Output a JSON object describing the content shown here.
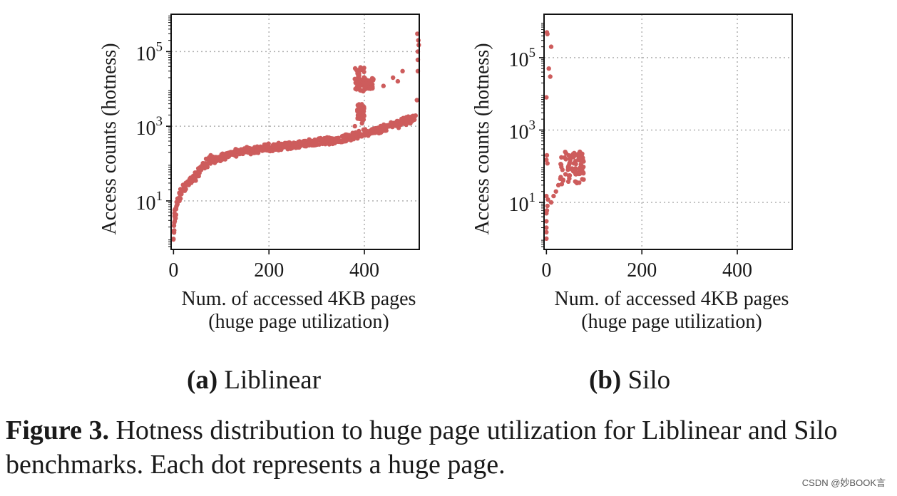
{
  "chart_data": [
    {
      "type": "scatter",
      "panel_label": "(a)",
      "panel_title": "Liblinear",
      "xlabel": "Num. of accessed 4KB pages",
      "xlabel2": "(huge page utilization)",
      "ylabel": "Access counts (hotness)",
      "xlim": [
        -5,
        515
      ],
      "ylim_log10": [
        -0.3,
        6.0
      ],
      "xticks": [
        0,
        200,
        400
      ],
      "xtick_labels": [
        "0",
        "200",
        "400"
      ],
      "yticks_log10": [
        1,
        3,
        5
      ],
      "ytick_labels": [
        {
          "base": "10",
          "exp": "1"
        },
        {
          "base": "10",
          "exp": "3"
        },
        {
          "base": "10",
          "exp": "5"
        }
      ],
      "y_scale": "log",
      "grid": true,
      "marker_color": "#cd5c5c",
      "series": [
        {
          "curves": [
            [
              [
                0,
                0.9
              ],
              [
                1,
                3
              ],
              [
                3,
                5
              ],
              [
                6,
                8
              ],
              [
                10,
                12
              ],
              [
                15,
                18
              ],
              [
                20,
                22
              ],
              [
                30,
                30
              ],
              [
                40,
                45
              ],
              [
                50,
                60
              ],
              [
                60,
                90
              ],
              [
                70,
                120
              ],
              [
                80,
                140
              ],
              [
                100,
                160
              ],
              [
                130,
                200
              ],
              [
                160,
                240
              ],
              [
                200,
                280
              ],
              [
                250,
                330
              ],
              [
                300,
                380
              ],
              [
                330,
                420
              ],
              [
                360,
                480
              ],
              [
                390,
                580
              ],
              [
                420,
                700
              ],
              [
                450,
                900
              ],
              [
                480,
                1200
              ],
              [
                500,
                1500
              ],
              [
                510,
                2000
              ]
            ],
            [
              [
                0,
                1
              ],
              [
                2,
                2.5
              ],
              [
                5,
                5
              ],
              [
                10,
                10
              ],
              [
                20,
                18
              ],
              [
                30,
                28
              ],
              [
                45,
                40
              ],
              [
                60,
                70
              ],
              [
                75,
                100
              ],
              [
                90,
                130
              ],
              [
                120,
                170
              ],
              [
                150,
                210
              ],
              [
                200,
                260
              ],
              [
                250,
                310
              ],
              [
                300,
                360
              ],
              [
                340,
                420
              ],
              [
                370,
                520
              ],
              [
                400,
                680
              ],
              [
                430,
                850
              ],
              [
                460,
                1100
              ],
              [
                490,
                1500
              ],
              [
                505,
                1800
              ]
            ]
          ],
          "clusters": [
            {
              "x": [
                380,
                400
              ],
              "y": [
                8000,
                40000
              ]
            },
            {
              "x": [
                385,
                400
              ],
              "y": [
                1500,
                4000
              ]
            },
            {
              "x": [
                400,
                420
              ],
              "y": [
                10000,
                20000
              ]
            }
          ],
          "points": [
            [
              460,
              20000
            ],
            [
              470,
              16000
            ],
            [
              440,
              12000
            ],
            [
              480,
              30000
            ],
            [
              505,
              1500
            ],
            [
              510,
              5000
            ],
            [
              512,
              30000
            ],
            [
              512,
              100000
            ],
            [
              513,
              200000
            ],
            [
              512,
              60000
            ],
            [
              514,
              150000
            ],
            [
              511,
              300000
            ],
            [
              380,
              1000
            ],
            [
              395,
              1200
            ]
          ]
        }
      ]
    },
    {
      "type": "scatter",
      "panel_label": "(b)",
      "panel_title": "Silo",
      "xlabel": "Num. of accessed 4KB pages",
      "xlabel2": "(huge page utilization)",
      "ylabel": "Access counts (hotness)",
      "xlim": [
        -5,
        515
      ],
      "ylim_log10": [
        -0.3,
        6.2
      ],
      "xticks": [
        0,
        200,
        400
      ],
      "xtick_labels": [
        "0",
        "200",
        "400"
      ],
      "yticks_log10": [
        1,
        3,
        5
      ],
      "ytick_labels": [
        {
          "base": "10",
          "exp": "1"
        },
        {
          "base": "10",
          "exp": "3"
        },
        {
          "base": "10",
          "exp": "5"
        }
      ],
      "y_scale": "log",
      "grid": true,
      "marker_color": "#cd5c5c",
      "series": [
        {
          "curves": [],
          "clusters": [
            {
              "x": [
                25,
                78
              ],
              "y": [
                30,
                250
              ]
            },
            {
              "x": [
                45,
                78
              ],
              "y": [
                60,
                250
              ]
            }
          ],
          "points": [
            [
              0,
              1
            ],
            [
              0,
              1.5
            ],
            [
              0,
              2
            ],
            [
              0,
              3
            ],
            [
              0,
              5
            ],
            [
              1,
              6
            ],
            [
              2,
              8
            ],
            [
              3,
              12
            ],
            [
              0,
              15
            ],
            [
              2,
              120
            ],
            [
              0,
              150
            ],
            [
              1,
              200
            ],
            [
              0,
              8000
            ],
            [
              1,
              500000
            ],
            [
              2,
              450000
            ],
            [
              5,
              50000
            ],
            [
              8,
              30000
            ],
            [
              10,
              200000
            ],
            [
              15,
              15
            ],
            [
              20,
              20
            ],
            [
              25,
              30
            ],
            [
              30,
              50
            ],
            [
              35,
              40
            ],
            [
              40,
              60
            ],
            [
              45,
              80
            ],
            [
              10,
              10
            ],
            [
              50,
              150
            ],
            [
              60,
              200
            ],
            [
              70,
              250
            ],
            [
              75,
              220
            ]
          ]
        }
      ]
    }
  ],
  "captions": {
    "a_label": "(a)",
    "a_title": "Liblinear",
    "b_label": "(b)",
    "b_title": "Silo"
  },
  "figure": {
    "label": "Figure 3.",
    "text": "Hotness distribution to huge page utilization for Liblinear and Silo benchmarks. Each dot represents a huge page."
  },
  "watermark": "CSDN @妙BOOK言"
}
